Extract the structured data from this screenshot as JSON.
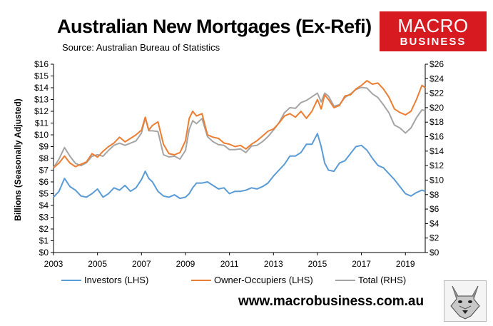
{
  "header": {
    "title": "Australian New Mortgages (Ex-Refi)",
    "subtitle": "Source: Australian Bureau of Statistics"
  },
  "logo": {
    "top": "MACRO",
    "bottom": "BUSINESS",
    "color": "#d71920"
  },
  "footer": {
    "url": "www.macrobusiness.com.au"
  },
  "mascot": {
    "icon": "wolf-face-icon"
  },
  "chart_data": {
    "type": "line",
    "title": "Australian New Mortgages (Ex-Refi)",
    "subtitle": "Source: Australian Bureau of Statistics",
    "ylabel": "Billions (Seasonally Adjusted)",
    "x_ticks": [
      "2003",
      "2005",
      "2007",
      "2009",
      "2011",
      "2013",
      "2015",
      "2017",
      "2019"
    ],
    "x_range": [
      2003.0,
      2019.9
    ],
    "left_axis": {
      "ylim": [
        0,
        16
      ],
      "step": 1,
      "prefix": "$",
      "tick_labels": [
        "$0",
        "$1",
        "$2",
        "$3",
        "$4",
        "$5",
        "$6",
        "$7",
        "$8",
        "$9",
        "$10",
        "$11",
        "$12",
        "$13",
        "$14",
        "$15",
        "$16"
      ]
    },
    "right_axis": {
      "ylim": [
        0,
        26
      ],
      "step": 2,
      "prefix": "$",
      "tick_labels": [
        "$0",
        "$2",
        "$4",
        "$6",
        "$8",
        "$10",
        "$12",
        "$14",
        "$16",
        "$18",
        "$20",
        "$22",
        "$24",
        "$26"
      ]
    },
    "grid": false,
    "legend_position": "bottom",
    "x": [
      2003.0,
      2003.25,
      2003.5,
      2003.75,
      2004.0,
      2004.25,
      2004.5,
      2004.75,
      2005.0,
      2005.25,
      2005.5,
      2005.75,
      2006.0,
      2006.25,
      2006.5,
      2006.75,
      2007.0,
      2007.17,
      2007.33,
      2007.5,
      2007.75,
      2008.0,
      2008.25,
      2008.5,
      2008.75,
      2009.0,
      2009.17,
      2009.33,
      2009.5,
      2009.75,
      2010.0,
      2010.25,
      2010.5,
      2010.75,
      2011.0,
      2011.25,
      2011.5,
      2011.75,
      2012.0,
      2012.25,
      2012.5,
      2012.75,
      2013.0,
      2013.25,
      2013.5,
      2013.75,
      2014.0,
      2014.25,
      2014.5,
      2014.75,
      2015.0,
      2015.17,
      2015.33,
      2015.5,
      2015.75,
      2016.0,
      2016.25,
      2016.5,
      2016.75,
      2017.0,
      2017.25,
      2017.5,
      2017.75,
      2018.0,
      2018.25,
      2018.5,
      2018.75,
      2019.0,
      2019.25,
      2019.5,
      2019.75,
      2019.9
    ],
    "series": [
      {
        "name": "Investors (LHS)",
        "axis": "left",
        "color": "#5b9bd5",
        "values": [
          4.7,
          5.2,
          6.3,
          5.6,
          5.3,
          4.8,
          4.7,
          5.0,
          5.4,
          4.7,
          5.0,
          5.5,
          5.3,
          5.7,
          5.2,
          5.5,
          6.2,
          6.9,
          6.3,
          6.0,
          5.2,
          4.8,
          4.7,
          4.9,
          4.6,
          4.7,
          5.0,
          5.5,
          5.9,
          5.9,
          6.0,
          5.7,
          5.4,
          5.5,
          5.0,
          5.2,
          5.2,
          5.3,
          5.5,
          5.4,
          5.6,
          5.9,
          6.5,
          7.0,
          7.5,
          8.2,
          8.2,
          8.5,
          9.2,
          9.2,
          10.1,
          9.0,
          7.6,
          7.0,
          6.9,
          7.6,
          7.8,
          8.4,
          9.0,
          9.1,
          8.7,
          8.0,
          7.4,
          7.2,
          6.7,
          6.2,
          5.6,
          5.0,
          4.8,
          5.1,
          5.3,
          5.2
        ]
      },
      {
        "name": "Owner-Occupiers (LHS)",
        "axis": "left",
        "color": "#ed7d31",
        "values": [
          7.2,
          7.6,
          8.2,
          7.6,
          7.3,
          7.5,
          7.7,
          8.4,
          8.1,
          8.6,
          9.0,
          9.3,
          9.8,
          9.4,
          9.7,
          10.0,
          10.4,
          11.5,
          10.4,
          10.8,
          11.1,
          9.2,
          8.4,
          8.3,
          8.5,
          9.5,
          11.4,
          12.0,
          11.6,
          11.8,
          10.0,
          9.8,
          9.7,
          9.3,
          9.2,
          9.0,
          9.1,
          8.8,
          9.2,
          9.5,
          9.9,
          10.3,
          10.5,
          11.0,
          11.6,
          11.8,
          11.5,
          12.0,
          11.4,
          12.0,
          13.0,
          12.2,
          13.4,
          13.0,
          12.3,
          12.5,
          13.3,
          13.4,
          13.9,
          14.2,
          14.6,
          14.3,
          14.4,
          13.9,
          13.2,
          12.2,
          11.9,
          11.7,
          12.0,
          13.0,
          14.2,
          14.0
        ]
      },
      {
        "name": "Total (RHS)",
        "axis": "right",
        "color": "#a5a5a5",
        "values": [
          11.7,
          12.9,
          14.5,
          13.3,
          12.3,
          12.0,
          12.4,
          13.3,
          13.5,
          13.3,
          14.1,
          14.8,
          15.1,
          14.8,
          15.1,
          15.4,
          16.5,
          18.6,
          16.8,
          16.8,
          16.7,
          13.5,
          13.2,
          13.3,
          12.9,
          14.1,
          17.0,
          18.2,
          17.8,
          18.5,
          16.0,
          15.3,
          14.9,
          14.8,
          14.2,
          14.2,
          14.3,
          13.8,
          14.7,
          14.8,
          15.3,
          16.0,
          16.9,
          17.9,
          19.3,
          20.0,
          19.9,
          20.7,
          21.0,
          21.5,
          22.0,
          20.8,
          22.0,
          21.6,
          20.2,
          20.4,
          21.4,
          21.9,
          22.5,
          22.8,
          22.7,
          21.9,
          21.4,
          20.4,
          19.3,
          17.6,
          17.2,
          16.5,
          17.2,
          18.6,
          19.7,
          19.6
        ]
      }
    ]
  }
}
